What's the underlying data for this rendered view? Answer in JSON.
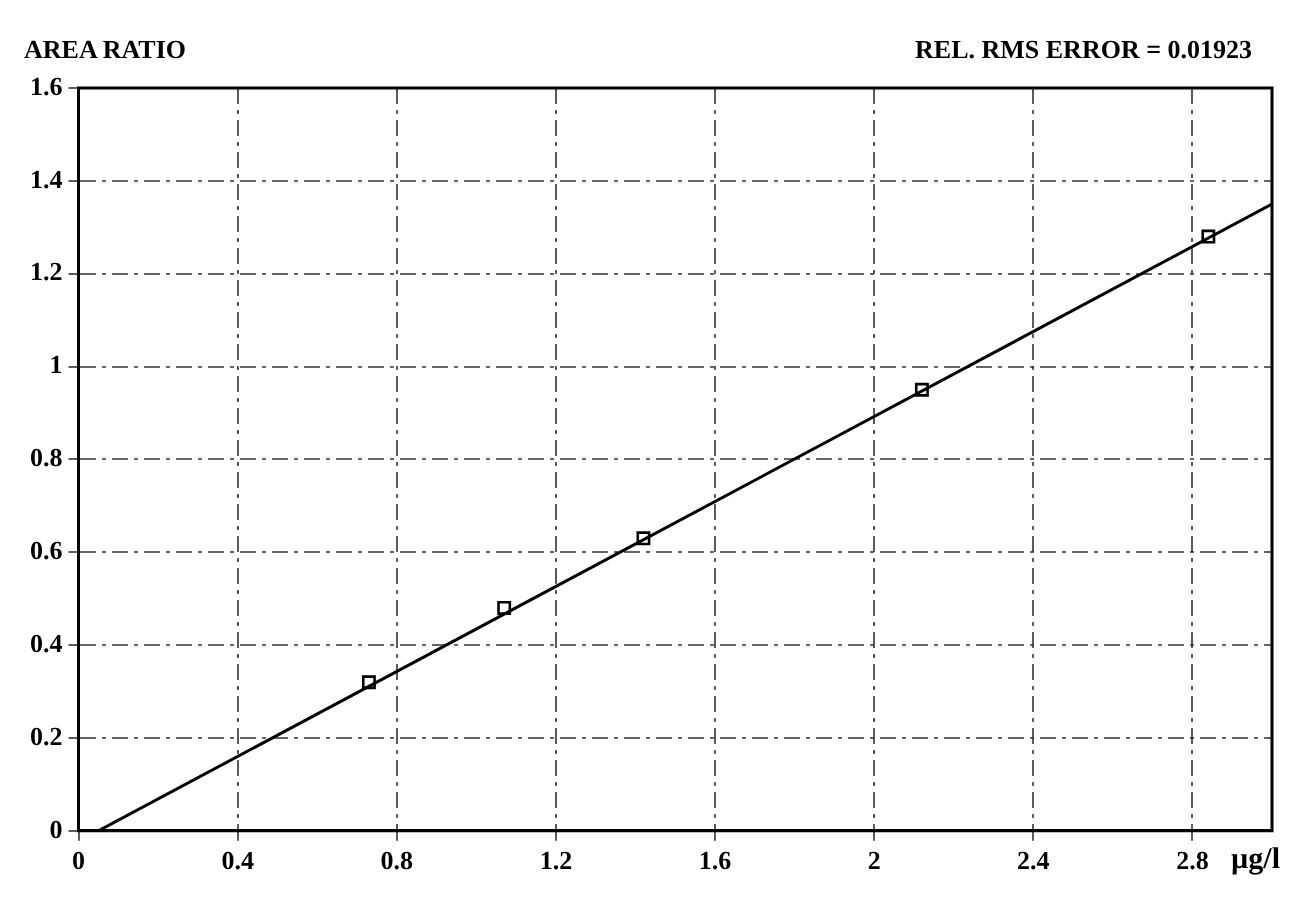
{
  "chart_data": {
    "type": "scatter",
    "ylabel": "AREA RATIO",
    "xlabel": "µg/l",
    "annotations": [
      "REL. RMS ERROR = 0.01923"
    ],
    "series": [
      {
        "color": "#000000",
        "marker": "square",
        "x": [
          0.73,
          1.07,
          1.42,
          2.12,
          2.84
        ],
        "values": [
          0.32,
          0.48,
          0.63,
          0.95,
          1.28
        ]
      },
      {
        "type": "line",
        "color": "#000000",
        "marker": "none",
        "line_style": "solid",
        "x": [
          0.05,
          3
        ],
        "values": [
          0,
          1.35
        ]
      }
    ],
    "xlim": [
      0,
      3
    ],
    "xticks": [
      0,
      0.4,
      0.8,
      1.2,
      1.6,
      2,
      2.4,
      2.8
    ],
    "ylim": [
      0,
      1.6
    ],
    "yticks": [
      0,
      0.2,
      0.4,
      0.6,
      0.8,
      1,
      1.2,
      1.4,
      1.6
    ],
    "grid": true,
    "legend": false
  }
}
